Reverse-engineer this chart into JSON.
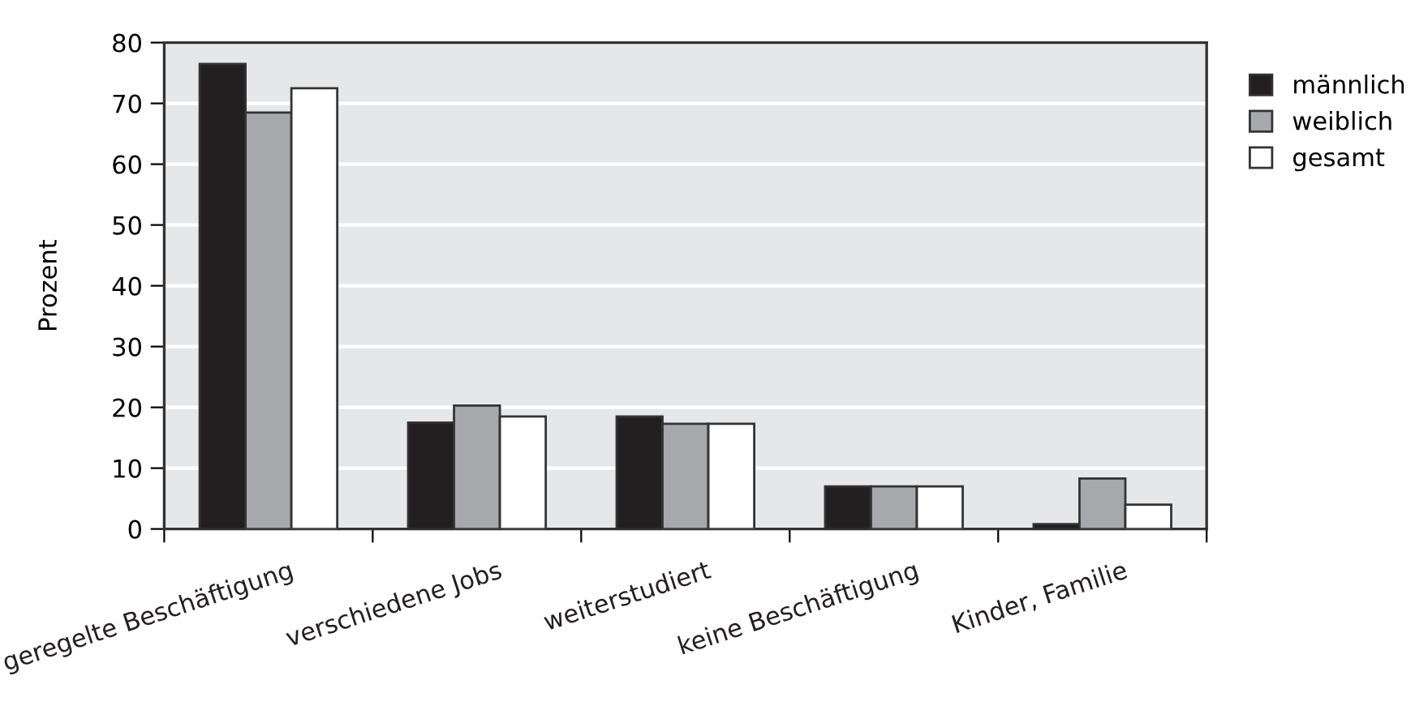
{
  "chart_data": {
    "type": "bar",
    "ylabel": "Prozent",
    "categories": [
      "geregelte Beschäftigung",
      "verschiedene Jobs",
      "weiterstudiert",
      "keine Beschäftigung",
      "Kinder, Familie"
    ],
    "series": [
      {
        "name": "männlich",
        "color": "#231f20",
        "values": [
          76.5,
          17.5,
          18.5,
          7,
          0.8
        ]
      },
      {
        "name": "weiblich",
        "color": "#a7a8ab",
        "values": [
          68.5,
          20.3,
          17.3,
          7,
          8.3
        ]
      },
      {
        "name": "gesamt",
        "color": "#ffffff",
        "values": [
          72.5,
          18.5,
          17.3,
          7,
          4
        ]
      }
    ],
    "ylim": [
      0,
      80
    ],
    "yticks": [
      0,
      10,
      20,
      30,
      40,
      50,
      60,
      70,
      80
    ],
    "grid": "y",
    "legend": "top right"
  }
}
